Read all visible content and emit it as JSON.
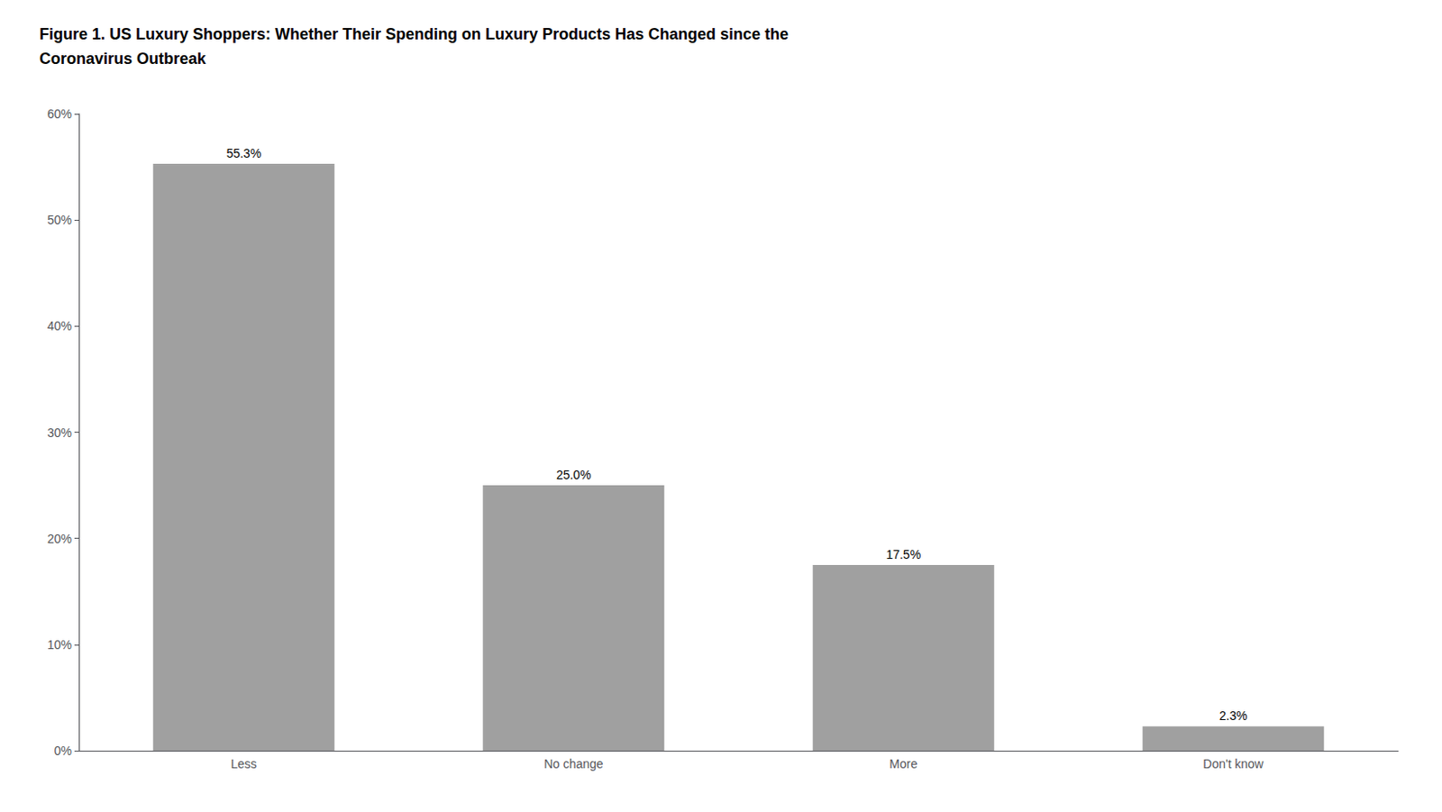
{
  "chart_data": {
    "type": "bar",
    "title": "Figure 1. US Luxury Shoppers: Whether Their Spending on Luxury Products Has Changed since the\nCoronavirus Outbreak",
    "categories": [
      "Less",
      "No change",
      "More",
      "Don't know"
    ],
    "values": [
      55.3,
      25.0,
      17.5,
      2.3
    ],
    "value_labels": [
      "55.3%",
      "25.0%",
      "17.5%",
      "2.3%"
    ],
    "color": "#A0A0A0",
    "ylim": [
      0,
      60
    ],
    "yticks": [
      {
        "value": 0,
        "label": "0%"
      },
      {
        "value": 10,
        "label": "10%"
      },
      {
        "value": 20,
        "label": "20%"
      },
      {
        "value": 30,
        "label": "30%"
      },
      {
        "value": 40,
        "label": "40%"
      },
      {
        "value": 50,
        "label": "50%"
      },
      {
        "value": 60,
        "label": "60%"
      }
    ],
    "grid": false,
    "data_labels": true
  }
}
